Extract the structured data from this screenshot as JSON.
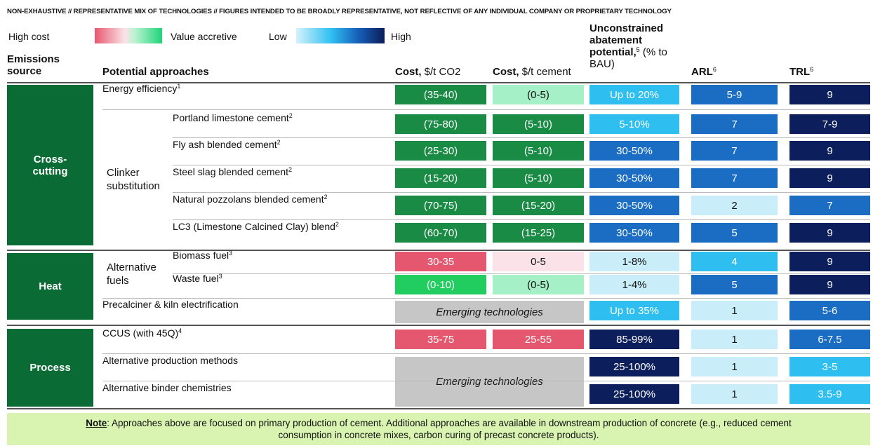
{
  "disclaimer": "NON-EXHAUSTIVE // REPRESENTATIVE MIX OF TECHNOLOGIES // FIGURES INTENDED TO BE BROADLY REPRESENTATIVE, NOT REFLECTIVE OF ANY INDIVIDUAL COMPANY OR PROPRIETARY TECHNOLOGY",
  "legend": {
    "cost_low": "High cost",
    "cost_high": "Value accretive",
    "scale_low": "Low",
    "scale_high": "High"
  },
  "header": {
    "source": "Emissions source",
    "approaches": "Potential approaches",
    "cost_co2": {
      "bold": "Cost,",
      "rest": "$/t CO2"
    },
    "cost_cement": {
      "bold": "Cost,",
      "rest": "$/t cement"
    },
    "abatement": {
      "bold": "Unconstrained abatement potential,",
      "sup": "5",
      "rest": "(% to BAU)"
    },
    "arl": {
      "bold": "ARL",
      "sup": "6"
    },
    "trl": {
      "bold": "TRL",
      "sup": "6"
    }
  },
  "groups": [
    {
      "label": "Cross-cutting",
      "items": [
        {
          "approach": "Energy efficiency",
          "sup": "1",
          "cost_co2": "(35-40)",
          "cost_cement": "(0-5)",
          "abatement": "Up to 20%",
          "arl": "5-9",
          "trl": "9"
        },
        {
          "label": "Clinker substitution",
          "rows": [
            {
              "approach": "Portland limestone cement",
              "sup": "2",
              "cost_co2": "(75-80)",
              "cost_cement": "(5-10)",
              "abatement": "5-10%",
              "arl": "7",
              "trl": "7-9"
            },
            {
              "approach": "Fly ash blended cement",
              "sup": "2",
              "cost_co2": "(25-30)",
              "cost_cement": "(5-10)",
              "abatement": "30-50%",
              "arl": "7",
              "trl": "9"
            },
            {
              "approach": "Steel slag blended cement",
              "sup": "2",
              "cost_co2": "(15-20)",
              "cost_cement": "(5-10)",
              "abatement": "30-50%",
              "arl": "7",
              "trl": "9"
            },
            {
              "approach": "Natural pozzolans blended cement",
              "sup": "2",
              "cost_co2": "(70-75)",
              "cost_cement": "(15-20)",
              "abatement": "30-50%",
              "arl": "2",
              "trl": "7"
            },
            {
              "approach": "LC3 (Limestone Calcined Clay) blend",
              "sup": "2",
              "cost_co2": "(60-70)",
              "cost_cement": "(15-25)",
              "abatement": "30-50%",
              "arl": "5",
              "trl": "9"
            }
          ]
        }
      ]
    },
    {
      "label": "Heat",
      "items": [
        {
          "label": "Alternative fuels",
          "rows": [
            {
              "approach": "Biomass fuel",
              "sup": "3",
              "cost_co2": "30-35",
              "cost_cement": "0-5",
              "abatement": "1-8%",
              "arl": "4",
              "trl": "9"
            },
            {
              "approach": "Waste fuel",
              "sup": "3",
              "cost_co2": "(0-10)",
              "cost_cement": "(0-5)",
              "abatement": "1-4%",
              "arl": "5",
              "trl": "9"
            }
          ]
        },
        {
          "approach": "Precalciner & kiln electrification",
          "emerging": "Emerging technologies",
          "abatement": "Up to 35%",
          "arl": "1",
          "trl": "5-6"
        }
      ]
    },
    {
      "label": "Process",
      "items": [
        {
          "approach": "CCUS (with 45Q)",
          "sup": "4",
          "cost_co2": "35-75",
          "cost_cement": "25-55",
          "abatement": "85-99%",
          "arl": "1",
          "trl": "6-7.5"
        },
        {
          "approach": "Alternative production methods",
          "emerging": "Emerging technologies",
          "abatement": "25-100%",
          "arl": "1",
          "trl": "3-5"
        },
        {
          "approach": "Alternative binder chemistries",
          "abatement": "25-100%",
          "arl": "1",
          "trl": "3.5-9"
        }
      ]
    }
  ],
  "note": {
    "label": "Note",
    "text": ": Approaches above are focused on primary production of cement. Additional approaches are available in downstream production of concrete (e.g., reduced cement consumption in concrete mixes, carbon curing of precast concrete products)."
  }
}
